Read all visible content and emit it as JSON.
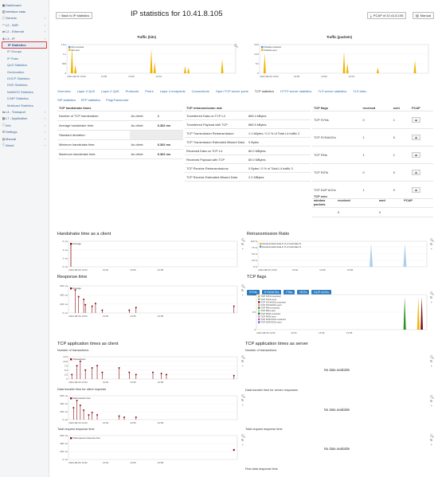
{
  "sidebar": {
    "items": [
      {
        "label": "Dashboard",
        "icon": "dashboard-icon",
        "sub": false
      },
      {
        "label": "Interface stats",
        "icon": "chart-icon",
        "sub": false
      },
      {
        "label": "Generic",
        "icon": "info-icon",
        "sub": false
      },
      {
        "label": "L2 - WiFi",
        "icon": "wifi-icon",
        "sub": false
      },
      {
        "label": "L2 - Ethernet",
        "icon": "ethernet-icon",
        "sub": false
      },
      {
        "label": "L3 - IP",
        "icon": "network-icon",
        "sub": false
      },
      {
        "label": "IP Statistics",
        "sub": true,
        "active": true
      },
      {
        "label": "IP Groups",
        "sub": true
      },
      {
        "label": "IP Pairs",
        "sub": true
      },
      {
        "label": "QoS Statistics",
        "sub": true
      },
      {
        "label": "Geolocation",
        "sub": true
      },
      {
        "label": "DHCP Statistics",
        "sub": true
      },
      {
        "label": "DNS Statistics",
        "sub": true
      },
      {
        "label": "NetBIOS Statistics",
        "sub": true
      },
      {
        "label": "ICMP Statistics",
        "sub": true
      },
      {
        "label": "Multicast Statistics",
        "sub": true
      },
      {
        "label": "L4 - Transport",
        "icon": "transport-icon",
        "sub": false
      },
      {
        "label": "L7 - Application",
        "icon": "application-icon",
        "sub": false
      },
      {
        "label": "Info",
        "icon": "info-icon",
        "sub": false
      },
      {
        "label": "Settings",
        "icon": "gear-icon",
        "sub": false
      },
      {
        "label": "Manual",
        "icon": "book-icon",
        "sub": false
      },
      {
        "label": "About",
        "icon": "about-icon",
        "sub": false
      }
    ]
  },
  "header": {
    "back_label": "Back to IP statistics",
    "title": "IP statistics for 10.41.8.105",
    "pcap_label": "PCAP of 10.41.8.105",
    "manual_label": "Manual"
  },
  "traffic_bits": {
    "title": "Traffic (bits)",
    "legend": [
      "bits received",
      "bits sent"
    ],
    "yticks": [
      "1.5 k",
      "1 k",
      "500",
      "0"
    ],
    "xticks": [
      "2024-08-06 13:52",
      "13:56",
      "13:56",
      "14:01"
    ]
  },
  "traffic_packets": {
    "title": "Traffic (packets)",
    "legend": [
      "Packets received",
      "Packets sent"
    ],
    "yticks": [
      "15.0",
      "10.0",
      "5.0",
      "0"
    ],
    "xticks": [
      "2024-08-06 13:52",
      "13:56",
      "13:56",
      "13:01"
    ]
  },
  "tabs": [
    "Overview",
    "Layer 3 QoS",
    "Layer 2 QoS",
    "Protocols",
    "Peers",
    "Layer 4 endpoints",
    "Connections",
    "Open TCP server ports",
    "TCP statistics",
    "HTTP server statistics",
    "TLS server statistics",
    "TLS letsx"
  ],
  "subtabs": [
    "SIP statistics",
    "RTP statistics",
    "Ping/Traceroute"
  ],
  "handshake": {
    "headers": [
      "TCP handshake times",
      "",
      ""
    ],
    "rows": [
      [
        "Number of TCP handshakes:",
        "As client:",
        "1"
      ],
      [
        "Average handshake time:",
        "As client:",
        "6.302 ms"
      ],
      [
        "Standard deviation:",
        "",
        ""
      ],
      [
        "Minimum handshake time:",
        "As client:",
        "6.302 ms"
      ],
      [
        "Maximum handshake time:",
        "As client:",
        "6.302 ms"
      ]
    ]
  },
  "retrans": {
    "header": "TCP retransmission rate",
    "rows": [
      [
        "Transferred Data on TCP L4",
        "865.4 kBytes"
      ],
      [
        "Transferred Payload with TCP",
        "865.9 kBytes"
      ],
      [
        "TCP Transmission Retransmission",
        "1.1 kBytes / 0.2 % of Total L4 traffic 2"
      ],
      [
        "TCP Transmission Estimated Missed Data",
        "0 Bytes"
      ],
      [
        "Received Data on TCP L4",
        "80.0 MBytes"
      ],
      [
        "Received Payload with TCP",
        "80.0 MBytes"
      ],
      [
        "TCP Receive Retransmissions",
        "0 Bytes / 0 % of Total L4 traffic 3"
      ],
      [
        "TCP Receive Estimated Missed Data",
        "2.2 MBytes"
      ]
    ]
  },
  "flags": {
    "headers": [
      "TCP flags",
      "received",
      "sent",
      "PCAP"
    ],
    "rows": [
      [
        "TCP SYNs",
        "0",
        "1"
      ],
      [
        "TCP SYN/ACKs",
        "1",
        "0"
      ],
      [
        "TCP FINs",
        "1",
        "1"
      ],
      [
        "TCP RSTs",
        "0",
        "0"
      ],
      [
        "TCP DUP ACKs",
        "1",
        "0"
      ]
    ]
  },
  "zero_window": {
    "headers": [
      "TCP zero window packets",
      "received",
      "sent",
      "PCAP"
    ],
    "row": [
      "",
      "0",
      "0"
    ]
  },
  "sections": {
    "handshake_client": "Handshake time as a client",
    "retrans_ratio": "Retransmission Ratio",
    "response_time": "Response time",
    "tcp_flags": "TCP flags",
    "app_client": "TCP application times as client",
    "app_server": "TCP application times as server"
  },
  "flag_buttons": [
    "SYNs",
    "SYN/ACKs",
    "FINs",
    "RSTs",
    "DUP ACKs"
  ],
  "small_labels": {
    "num_transactions": "Number of transactions",
    "data_transfer": "Data transfer time for client requests",
    "total_request": "Total request response time",
    "server_num": "Number of transactions",
    "server_data": "Data transfer time for server responses",
    "server_total": "Total request response time",
    "server_first": "First data response time"
  },
  "nodata": "No data available",
  "legends": {
    "handshake": "Average",
    "retrans": [
      "Retransmitted data in % of total data %",
      "Retransmitted data in % of total data %"
    ],
    "response": "Average",
    "flags": [
      "TCP SYNs received",
      "TCP SYNs sent",
      "TCP SYN/ACKs received",
      "TCP SYN/ACKs sent",
      "TCP FINs received",
      "TCP FINs sent",
      "TCP RSTs received",
      "TCP RSTs sent",
      "TCP DUP ACKs received",
      "TCP DUP ACKs sent"
    ],
    "transactions": "Transactions",
    "data_transfer": "Data transfer time",
    "total_req": "Total request response time"
  },
  "axis": {
    "hs_y": [
      "6 ms",
      "4 ms",
      "2 ms",
      "0 ms"
    ],
    "rr_y": [
      "100 %",
      "75 %",
      "50 %",
      "25 %",
      "0 %"
    ],
    "rt_y": [
      "600 ms",
      "400 ms",
      "200 ms",
      "0 ms"
    ],
    "fl_y": [
      "1.0",
      "0.5",
      "0"
    ],
    "tr_y": [
      "12.5",
      "10.0",
      "7.5",
      "5.0",
      "2.5",
      "0"
    ],
    "dt_y": [
      "600 ms",
      "400 ms",
      "200 ms",
      "0 ms"
    ],
    "tq_y": [
      "600 ms",
      "400 ms",
      "200 ms",
      "0 ms"
    ],
    "x": [
      "2024-08-06 13:52",
      "13:54",
      "13:56",
      "13:58"
    ]
  },
  "colors": {
    "sent": "#f0b400",
    "received": "#4a8fd8",
    "avg": "#8b0d13",
    "accent": "#2e7dc1",
    "active_border": "#e23b3b"
  }
}
